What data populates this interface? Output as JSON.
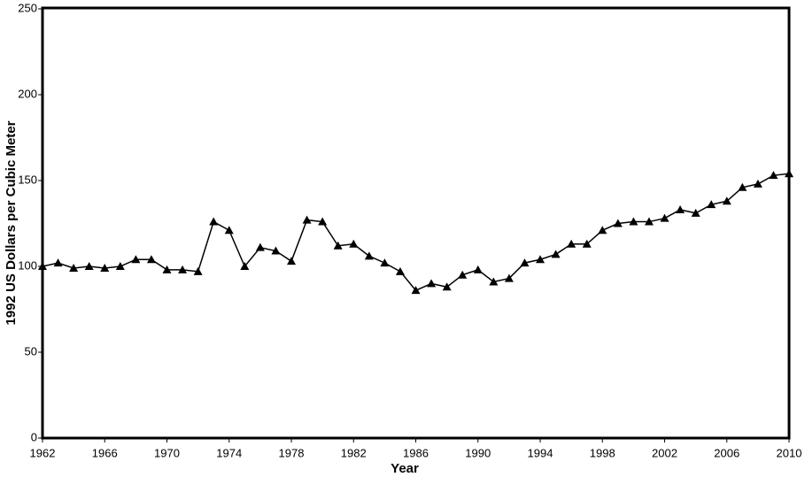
{
  "chart_data": {
    "type": "line",
    "xlabel": "Year",
    "ylabel": "1992 US Dollars per Cubic Meter",
    "x": [
      1962,
      1963,
      1964,
      1965,
      1966,
      1967,
      1968,
      1969,
      1970,
      1971,
      1972,
      1973,
      1974,
      1975,
      1976,
      1977,
      1978,
      1979,
      1980,
      1981,
      1982,
      1983,
      1984,
      1985,
      1986,
      1987,
      1988,
      1989,
      1990,
      1991,
      1992,
      1993,
      1994,
      1995,
      1996,
      1997,
      1998,
      1999,
      2000,
      2001,
      2002,
      2003,
      2004,
      2005,
      2006,
      2007,
      2008,
      2009,
      2010
    ],
    "values": [
      100,
      102,
      99,
      100,
      99,
      100,
      104,
      104,
      98,
      98,
      97,
      126,
      121,
      100,
      111,
      109,
      103,
      127,
      126,
      112,
      113,
      106,
      102,
      97,
      86,
      90,
      88,
      95,
      98,
      91,
      93,
      102,
      104,
      107,
      113,
      113,
      121,
      125,
      126,
      126,
      128,
      133,
      131,
      136,
      138,
      146,
      148,
      153,
      154
    ],
    "color": "#000000",
    "xlim": [
      1962,
      2010
    ],
    "xticks": [
      1962,
      1966,
      1970,
      1974,
      1978,
      1982,
      1986,
      1990,
      1994,
      1998,
      2002,
      2006,
      2010
    ],
    "ylim": [
      0,
      250
    ],
    "yticks": [
      0,
      50,
      100,
      150,
      200,
      250
    ]
  }
}
